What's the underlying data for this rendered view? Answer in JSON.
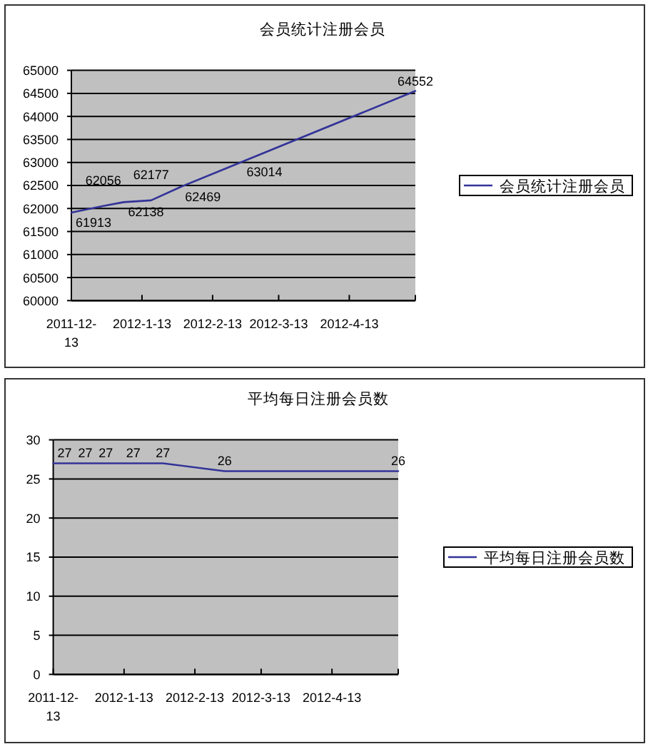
{
  "chart_data": [
    {
      "type": "line",
      "title": "会员统计注册会员",
      "x": [
        "2011-12-13",
        "2011-12-27",
        "2012-01-05",
        "2012-01-17",
        "2012-01-30",
        "2012-02-26",
        "2012-05-12"
      ],
      "series": [
        {
          "name": "会员统计注册会员",
          "color": "#333399",
          "values": [
            61913,
            62056,
            62138,
            62177,
            62469,
            63014,
            64552
          ]
        }
      ],
      "xlim": [
        "2011-12-13",
        "2012-05-12"
      ],
      "xticks": [
        {
          "value": "2011-12-13",
          "label": "2011-12-13"
        },
        {
          "value": "2012-01-13",
          "label": "2012-1-13"
        },
        {
          "value": "2012-02-13",
          "label": "2012-2-13"
        },
        {
          "value": "2012-03-13",
          "label": "2012-3-13"
        },
        {
          "value": "2012-04-13",
          "label": "2012-4-13"
        },
        {
          "value": "2012-05-12",
          "label": null
        }
      ],
      "ylim": [
        60000,
        65000
      ],
      "yticks": [
        60000,
        60500,
        61000,
        61500,
        62000,
        62500,
        63000,
        63500,
        64000,
        64500,
        65000
      ],
      "grid": "y",
      "legend": "right",
      "data_labels": true
    },
    {
      "type": "line",
      "title": "平均每日注册会员数",
      "x": [
        "2011-12-13",
        "2011-12-27",
        "2012-01-05",
        "2012-01-17",
        "2012-01-30",
        "2012-02-26",
        "2012-05-12"
      ],
      "series": [
        {
          "name": "平均每日注册会员数",
          "color": "#333399",
          "values": [
            27,
            27,
            27,
            27,
            27,
            26,
            26
          ]
        }
      ],
      "xlim": [
        "2011-12-13",
        "2012-05-12"
      ],
      "xticks": [
        {
          "value": "2011-12-13",
          "label": "2011-12-13"
        },
        {
          "value": "2012-01-13",
          "label": "2012-1-13"
        },
        {
          "value": "2012-02-13",
          "label": "2012-2-13"
        },
        {
          "value": "2012-03-13",
          "label": "2012-3-13"
        },
        {
          "value": "2012-04-13",
          "label": "2012-4-13"
        },
        {
          "value": "2012-05-12",
          "label": null
        }
      ],
      "ylim": [
        0,
        30
      ],
      "yticks": [
        0,
        5,
        10,
        15,
        20,
        25,
        30
      ],
      "grid": "y",
      "legend": "right",
      "data_labels": true
    }
  ]
}
